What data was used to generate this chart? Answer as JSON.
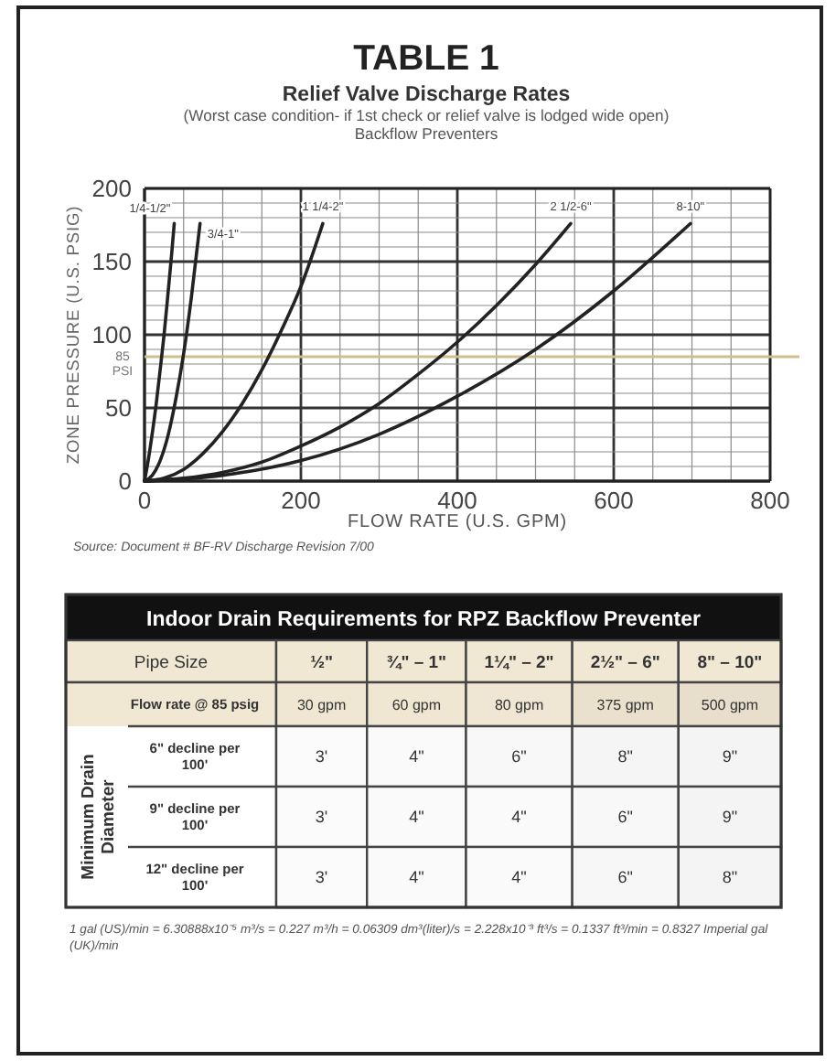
{
  "chart_data": [
    {
      "type": "line",
      "title": "Relief Valve Discharge Rates",
      "subtitle": "(Worst case condition- if 1st check or relief valve is lodged wide open)\nBackflow Preventers",
      "xlabel": "FLOW RATE (U.S. GPM)",
      "ylabel": "ZONE PRESSURE (U.S. PSIG)",
      "annotations": [
        "TABLE 1",
        "Source: Document # BF-RV Discharge Revision 7/00"
      ],
      "xlim": [
        0,
        800
      ],
      "ylim": [
        0,
        200
      ],
      "xticks": [
        0,
        {
          "value": 50,
          "label": null
        },
        {
          "value": 100,
          "label": null
        },
        {
          "value": 150,
          "label": null
        },
        200,
        {
          "value": 250,
          "label": null
        },
        {
          "value": 300,
          "label": null
        },
        {
          "value": 350,
          "label": null
        },
        400,
        {
          "value": 450,
          "label": null
        },
        {
          "value": 500,
          "label": null
        },
        {
          "value": 550,
          "label": null
        },
        600,
        {
          "value": 650,
          "label": null
        },
        {
          "value": 700,
          "label": null
        },
        {
          "value": 750,
          "label": null
        },
        800
      ],
      "yticks": [
        0,
        {
          "value": 10,
          "label": null
        },
        {
          "value": 20,
          "label": null
        },
        {
          "value": 30,
          "label": null
        },
        {
          "value": 40,
          "label": null
        },
        50,
        {
          "value": 60,
          "label": null
        },
        {
          "value": 70,
          "label": null
        },
        {
          "value": 80,
          "label": null
        },
        {
          "value": 90,
          "label": null
        },
        100,
        {
          "value": 110,
          "label": null
        },
        {
          "value": 120,
          "label": null
        },
        {
          "value": 130,
          "label": null
        },
        {
          "value": 140,
          "label": null
        },
        150,
        {
          "value": 160,
          "label": null
        },
        {
          "value": 170,
          "label": null
        },
        {
          "value": 180,
          "label": null
        },
        {
          "value": 190,
          "label": null
        },
        200
      ],
      "grid": true,
      "ref_lines": [
        {
          "axis": "y",
          "value": 85,
          "label": "85 PSI",
          "color": "#cdbf8e"
        }
      ],
      "series": [
        {
          "name": "1/4-1/2\"",
          "color": "#222222",
          "x": [
            0,
            5,
            10,
            15,
            20,
            25,
            30,
            35,
            38
          ],
          "values": [
            0,
            15,
            33,
            53,
            76,
            100,
            128,
            157,
            176
          ]
        },
        {
          "name": "3/4-1\"",
          "color": "#222222",
          "x": [
            0,
            10,
            20,
            30,
            40,
            50,
            60,
            71
          ],
          "values": [
            0,
            4,
            14,
            31,
            56,
            87,
            126,
            176
          ]
        },
        {
          "name": "1 1/4-2\"",
          "color": "#222222",
          "x": [
            0,
            25,
            50,
            75,
            100,
            125,
            150,
            175,
            200,
            228
          ],
          "values": [
            0,
            2,
            8,
            19,
            34,
            53,
            76,
            103,
            133,
            176
          ]
        },
        {
          "name": "2 1/2-6\"",
          "color": "#222222",
          "x": [
            0,
            50,
            100,
            150,
            200,
            250,
            300,
            350,
            400,
            450,
            500,
            545
          ],
          "values": [
            0,
            2,
            6,
            13,
            24,
            37,
            53,
            73,
            95,
            120,
            148,
            176
          ]
        },
        {
          "name": "8-10\"",
          "color": "#222222",
          "x": [
            0,
            100,
            200,
            300,
            400,
            500,
            600,
            698
          ],
          "values": [
            0,
            4,
            14,
            32,
            58,
            90,
            130,
            176
          ]
        }
      ]
    },
    {
      "type": "heatmap",
      "title": "Indoor Drain Requirements for RPZ Backflow Preventer",
      "xlabel": "Pipe Size",
      "ylabel": "Minimum Drain Diameter",
      "categories": [
        "½\"",
        "¾\" – 1\"",
        "1¼\" – 2\"",
        "2½\" – 6\"",
        "8\" – 10\""
      ],
      "y_categories": [
        "Flow rate @ 85 psig",
        "6\" decline per 100'",
        "9\" decline per 100'",
        "12\" decline per 100'"
      ],
      "cells": [
        [
          30,
          60,
          80,
          375,
          500
        ],
        [
          3,
          4,
          6,
          8,
          9
        ],
        [
          3,
          4,
          4,
          6,
          9
        ],
        [
          3,
          4,
          4,
          6,
          8
        ]
      ],
      "cell_labels": [
        [
          "30 gpm",
          "60 gpm",
          "80 gpm",
          "375 gpm",
          "500 gpm"
        ],
        [
          "3'",
          "4\"",
          "6\"",
          "8\"",
          "9\""
        ],
        [
          "3'",
          "4\"",
          "4\"",
          "6\"",
          "9\""
        ],
        [
          "3'",
          "4\"",
          "4\"",
          "6\"",
          "8\""
        ]
      ],
      "annotations": [
        "1 gal (US)/min = 6.30888x10⁻⁵ m³/s = 0.227 m³/h = 0.06309 dm³(liter)/s = 2.228x10⁻³ ft³/s = 0.1337 ft³/min = 0.8327 Imperial gal (UK)/min"
      ]
    }
  ]
}
